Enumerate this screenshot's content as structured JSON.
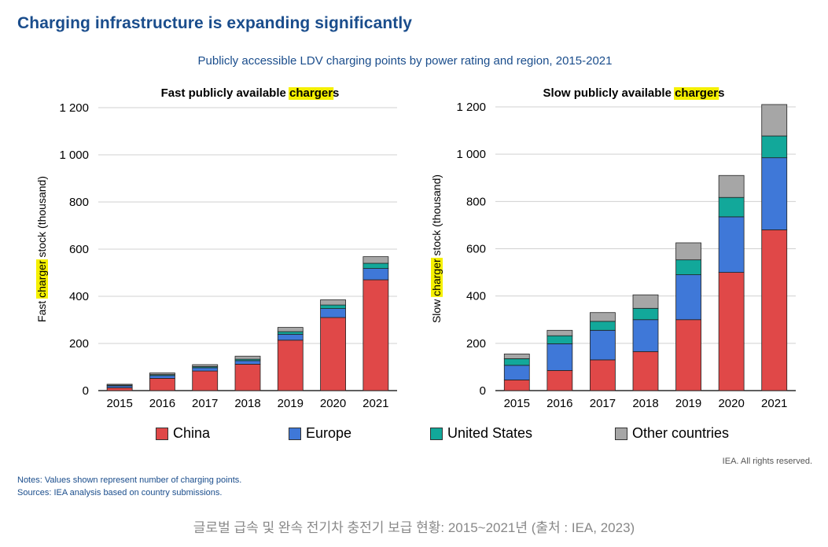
{
  "page": {
    "title": "Charging infrastructure is expanding significantly",
    "subtitle": "Publicly accessible LDV charging points by power rating and region, 2015-2021",
    "rights": "IEA. All rights reserved.",
    "notes": "Notes: Values shown represent number of charging points.",
    "sources": "Sources: IEA analysis based on country submissions.",
    "caption": "글로벌 급속 및 완속 전기차 충전기 보급 현황: 2015~2021년 (출처 : IEA, 2023)"
  },
  "colors": {
    "china": "#e04848",
    "europe": "#3f78d8",
    "united_states": "#12a89a",
    "other": "#a6a6a6",
    "highlight": "#f5f000",
    "title": "#1a4d8c"
  },
  "legend": [
    {
      "label": "China",
      "color": "#e04848"
    },
    {
      "label": "Europe",
      "color": "#3f78d8"
    },
    {
      "label": "United States",
      "color": "#12a89a"
    },
    {
      "label": "Other countries",
      "color": "#a6a6a6"
    }
  ],
  "chart_data": [
    {
      "type": "bar",
      "stacked": true,
      "title_parts": [
        "Fast  publicly available ",
        "charger",
        "s"
      ],
      "ylabel_parts": [
        "Fast ",
        "charger",
        " stock (thousand)"
      ],
      "categories": [
        "2015",
        "2016",
        "2017",
        "2018",
        "2019",
        "2020",
        "2021"
      ],
      "ylim": [
        0,
        1200
      ],
      "yticks": [
        0,
        200,
        400,
        600,
        800,
        1000,
        1200
      ],
      "ytick_labels": [
        "0",
        "200",
        "400",
        "600",
        "800",
        "1 000",
        "1 200"
      ],
      "series": [
        {
          "name": "China",
          "values": [
            12,
            52,
            83,
            112,
            214,
            310,
            470
          ]
        },
        {
          "name": "Europe",
          "values": [
            8,
            12,
            14,
            15,
            25,
            38,
            48
          ]
        },
        {
          "name": "United States",
          "values": [
            3,
            4,
            5,
            6,
            11,
            15,
            22
          ]
        },
        {
          "name": "Other countries",
          "values": [
            4,
            7,
            8,
            13,
            18,
            22,
            28
          ]
        }
      ]
    },
    {
      "type": "bar",
      "stacked": true,
      "title_parts": [
        "Slow publicly available ",
        "charger",
        "s"
      ],
      "ylabel_parts": [
        "Slow ",
        "charger",
        " stock (thousand)"
      ],
      "categories": [
        "2015",
        "2016",
        "2017",
        "2018",
        "2019",
        "2020",
        "2021"
      ],
      "ylim": [
        0,
        1200
      ],
      "yticks": [
        0,
        200,
        400,
        600,
        800,
        1000,
        1200
      ],
      "ytick_labels": [
        "0",
        "200",
        "400",
        "600",
        "800",
        "1 000",
        "1 200"
      ],
      "series": [
        {
          "name": "China",
          "values": [
            45,
            85,
            130,
            165,
            300,
            500,
            680
          ]
        },
        {
          "name": "Europe",
          "values": [
            62,
            113,
            125,
            135,
            190,
            235,
            305
          ]
        },
        {
          "name": "United States",
          "values": [
            28,
            34,
            38,
            48,
            63,
            82,
            92
          ]
        },
        {
          "name": "Other countries",
          "values": [
            20,
            23,
            37,
            57,
            72,
            93,
            133
          ]
        }
      ]
    }
  ]
}
